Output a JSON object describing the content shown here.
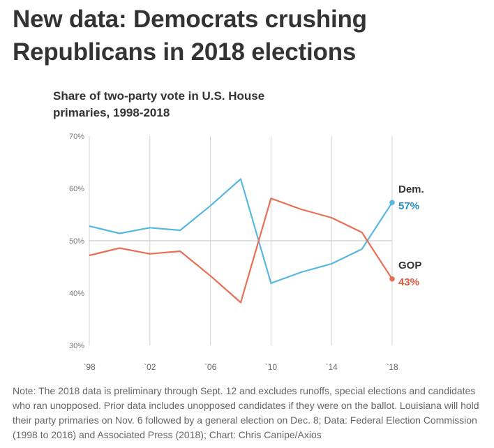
{
  "headline": [
    "New data: Democrats crushing",
    "Republicans in 2018 elections"
  ],
  "subtitle": [
    "Share of two-party vote in U.S. House",
    "primaries, 1998-2018"
  ],
  "note": "Note: The 2018 data is preliminary through Sept. 12 and excludes runoffs, special elections and candidates who ran unopposed. Prior data includes unopposed candidates if they were on the ballot. Louisiana will hold their party primaries on Nov. 6 followed by a general election on Dec. 8; Data: Federal Election Commission (1998 to 2016) and Associated Press (2018); Chart: Chris Canipe/Axios",
  "chart_data": {
    "type": "line",
    "title": "Share of two-party vote in U.S. House primaries, 1998-2018",
    "x": [
      1998,
      2000,
      2002,
      2004,
      2006,
      2008,
      2010,
      2012,
      2014,
      2016,
      2018
    ],
    "x_ticks": [
      1998,
      2002,
      2006,
      2010,
      2014,
      2018
    ],
    "x_tick_labels": [
      "`98",
      "`02",
      "`06",
      "`10",
      "`14",
      "`18"
    ],
    "xlim": [
      1998,
      2018
    ],
    "ylim": [
      30,
      70
    ],
    "y_ticks": [
      30,
      40,
      50,
      60,
      70
    ],
    "y_tick_labels": [
      "30%",
      "40%",
      "50%",
      "60%",
      "70%"
    ],
    "grid": "vertical lines at x ticks; horizontal line at 50%",
    "legend": "direct labels at right end of lines",
    "series": [
      {
        "name": "Dem.",
        "color": "#56b8e0",
        "values": [
          52.8,
          51.4,
          52.5,
          52.0,
          56.7,
          61.8,
          41.9,
          44.0,
          45.6,
          48.4,
          57.3
        ],
        "end_label": "57%"
      },
      {
        "name": "GOP",
        "color": "#e86f55",
        "values": [
          47.2,
          48.6,
          47.5,
          48.0,
          43.3,
          38.2,
          58.1,
          56.0,
          54.4,
          51.6,
          42.7
        ],
        "end_label": "43%"
      }
    ]
  }
}
